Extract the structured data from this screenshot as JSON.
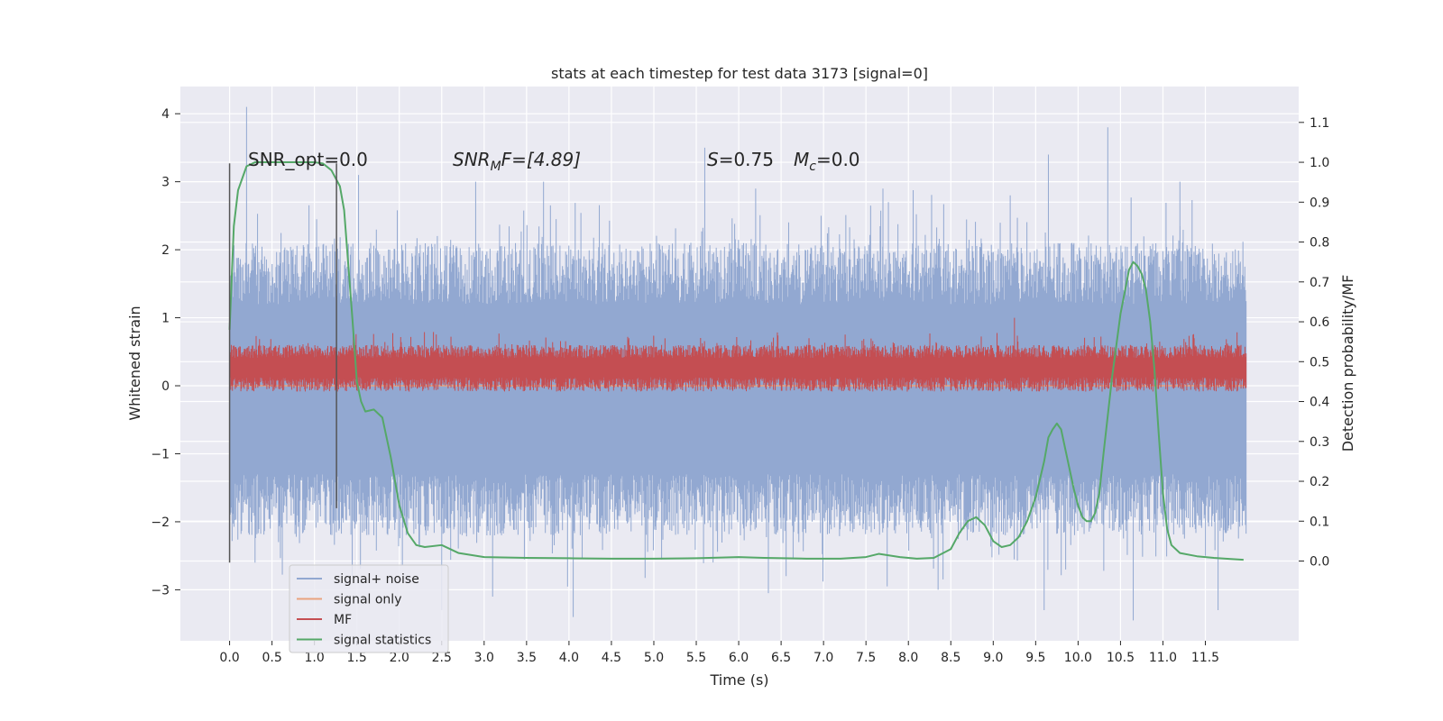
{
  "chart_data": {
    "type": "line",
    "title": "stats at each timestep for test data 3173 [signal=0]",
    "xlabel": "Time (s)",
    "ylabel": "Whitened strain",
    "y2label": "Detection probability/MF",
    "xlim": [
      -0.58,
      12.6
    ],
    "ylim": [
      -3.75,
      4.4
    ],
    "y2lim": [
      -0.2,
      1.19
    ],
    "x_ticks": [
      0.0,
      0.5,
      1.0,
      1.5,
      2.0,
      2.5,
      3.0,
      3.5,
      4.0,
      4.5,
      5.0,
      5.5,
      6.0,
      6.5,
      7.0,
      7.5,
      8.0,
      8.5,
      9.0,
      9.5,
      10.0,
      10.5,
      11.0,
      11.5
    ],
    "x_tick_labels": [
      "0.0",
      "0.5",
      "1.0",
      "1.5",
      "2.0",
      "2.5",
      "3.0",
      "3.5",
      "4.0",
      "4.5",
      "5.0",
      "5.5",
      "6.0",
      "6.5",
      "7.0",
      "7.5",
      "8.0",
      "8.5",
      "9.0",
      "9.5",
      "10.0",
      "10.5",
      "11.0",
      "11.5"
    ],
    "y_ticks": [
      -3,
      -2,
      -1,
      0,
      1,
      2,
      3,
      4
    ],
    "y_tick_labels": [
      "−3",
      "−2",
      "−1",
      "0",
      "1",
      "2",
      "3",
      "4"
    ],
    "y2_ticks": [
      0.0,
      0.1,
      0.2,
      0.3,
      0.4,
      0.5,
      0.6,
      0.7,
      0.8,
      0.9,
      1.0,
      1.1
    ],
    "y2_tick_labels": [
      "0.0",
      "0.1",
      "0.2",
      "0.3",
      "0.4",
      "0.5",
      "0.6",
      "0.7",
      "0.8",
      "0.9",
      "1.0",
      "1.1"
    ],
    "grid": true,
    "legend_position": "bottom-left",
    "annotations": {
      "snr_opt": "SNR_opt=0.0",
      "snr_mf_base": "SNR",
      "snr_mf_sub": "M",
      "snr_mf_rest": "F=[4.89]",
      "s_italic": "S",
      "s_rest": "=0.75",
      "mc_base": "M",
      "mc_sub": "c",
      "mc_rest": "=0.0"
    },
    "vlines": [
      {
        "x": 0.0,
        "ymin": -2.6,
        "ymax": 3.27
      },
      {
        "x": 1.26,
        "ymin": -1.8,
        "ymax": 3.27
      }
    ],
    "series": [
      {
        "name": "signal+ noise",
        "color": "#92a8d1",
        "axis": "left",
        "kind": "noise",
        "x_range": [
          0.0,
          11.98
        ],
        "spikes_up": [
          [
            0.2,
            4.1
          ],
          [
            1.52,
            3.1
          ],
          [
            2.9,
            3.0
          ],
          [
            3.7,
            3.0
          ],
          [
            5.6,
            3.5
          ],
          [
            6.2,
            2.9
          ],
          [
            7.7,
            2.9
          ],
          [
            9.2,
            2.8
          ],
          [
            9.65,
            3.4
          ],
          [
            10.35,
            3.8
          ],
          [
            11.2,
            3.0
          ]
        ],
        "spikes_down": [
          [
            0.3,
            -2.6
          ],
          [
            2.5,
            -3.3
          ],
          [
            3.1,
            -3.1
          ],
          [
            4.05,
            -3.4
          ],
          [
            6.35,
            -3.05
          ],
          [
            7.75,
            -2.95
          ],
          [
            8.35,
            -3.0
          ],
          [
            9.6,
            -3.3
          ],
          [
            10.65,
            -3.45
          ],
          [
            11.65,
            -3.3
          ]
        ]
      },
      {
        "name": "signal only",
        "color": "#e9a37e",
        "axis": "left",
        "kind": "flat",
        "x": [
          0.0,
          11.98
        ],
        "y": [
          0.0,
          0.0
        ]
      },
      {
        "name": "MF",
        "color": "#c44e52",
        "axis": "right",
        "kind": "band",
        "x_range": [
          0.0,
          11.98
        ],
        "center": 0.485,
        "spread": 0.03,
        "peaks": [
          [
            9.25,
            0.61
          ]
        ]
      },
      {
        "name": "signal statistics",
        "color": "#55a868",
        "axis": "right",
        "kind": "line",
        "x": [
          0.0,
          0.05,
          0.1,
          0.15,
          0.2,
          0.3,
          0.5,
          0.8,
          1.0,
          1.1,
          1.2,
          1.3,
          1.35,
          1.4,
          1.45,
          1.5,
          1.55,
          1.6,
          1.7,
          1.8,
          1.9,
          2.0,
          2.1,
          2.2,
          2.3,
          2.5,
          2.7,
          3.0,
          3.5,
          4.0,
          4.5,
          5.0,
          5.5,
          6.0,
          6.3,
          6.8,
          7.2,
          7.5,
          7.65,
          7.9,
          8.1,
          8.3,
          8.5,
          8.6,
          8.7,
          8.8,
          8.9,
          9.0,
          9.1,
          9.2,
          9.3,
          9.4,
          9.5,
          9.6,
          9.65,
          9.7,
          9.75,
          9.8,
          9.85,
          9.9,
          9.95,
          10.0,
          10.05,
          10.1,
          10.15,
          10.2,
          10.25,
          10.3,
          10.4,
          10.5,
          10.6,
          10.65,
          10.7,
          10.75,
          10.8,
          10.85,
          10.9,
          10.95,
          11.0,
          11.05,
          11.1,
          11.2,
          11.4,
          11.6,
          11.8,
          11.95
        ],
        "y": [
          0.58,
          0.84,
          0.93,
          0.96,
          0.99,
          1.0,
          1.0,
          1.0,
          1.0,
          0.997,
          0.98,
          0.94,
          0.88,
          0.74,
          0.6,
          0.45,
          0.4,
          0.375,
          0.38,
          0.36,
          0.26,
          0.14,
          0.07,
          0.04,
          0.035,
          0.04,
          0.02,
          0.01,
          0.008,
          0.007,
          0.006,
          0.006,
          0.007,
          0.01,
          0.008,
          0.006,
          0.006,
          0.01,
          0.018,
          0.01,
          0.006,
          0.008,
          0.03,
          0.07,
          0.1,
          0.11,
          0.09,
          0.05,
          0.035,
          0.04,
          0.06,
          0.1,
          0.16,
          0.25,
          0.31,
          0.33,
          0.345,
          0.33,
          0.28,
          0.23,
          0.18,
          0.14,
          0.11,
          0.1,
          0.1,
          0.12,
          0.17,
          0.27,
          0.46,
          0.62,
          0.73,
          0.75,
          0.74,
          0.72,
          0.68,
          0.6,
          0.48,
          0.32,
          0.17,
          0.08,
          0.04,
          0.02,
          0.012,
          0.008,
          0.005,
          0.003
        ]
      }
    ]
  }
}
